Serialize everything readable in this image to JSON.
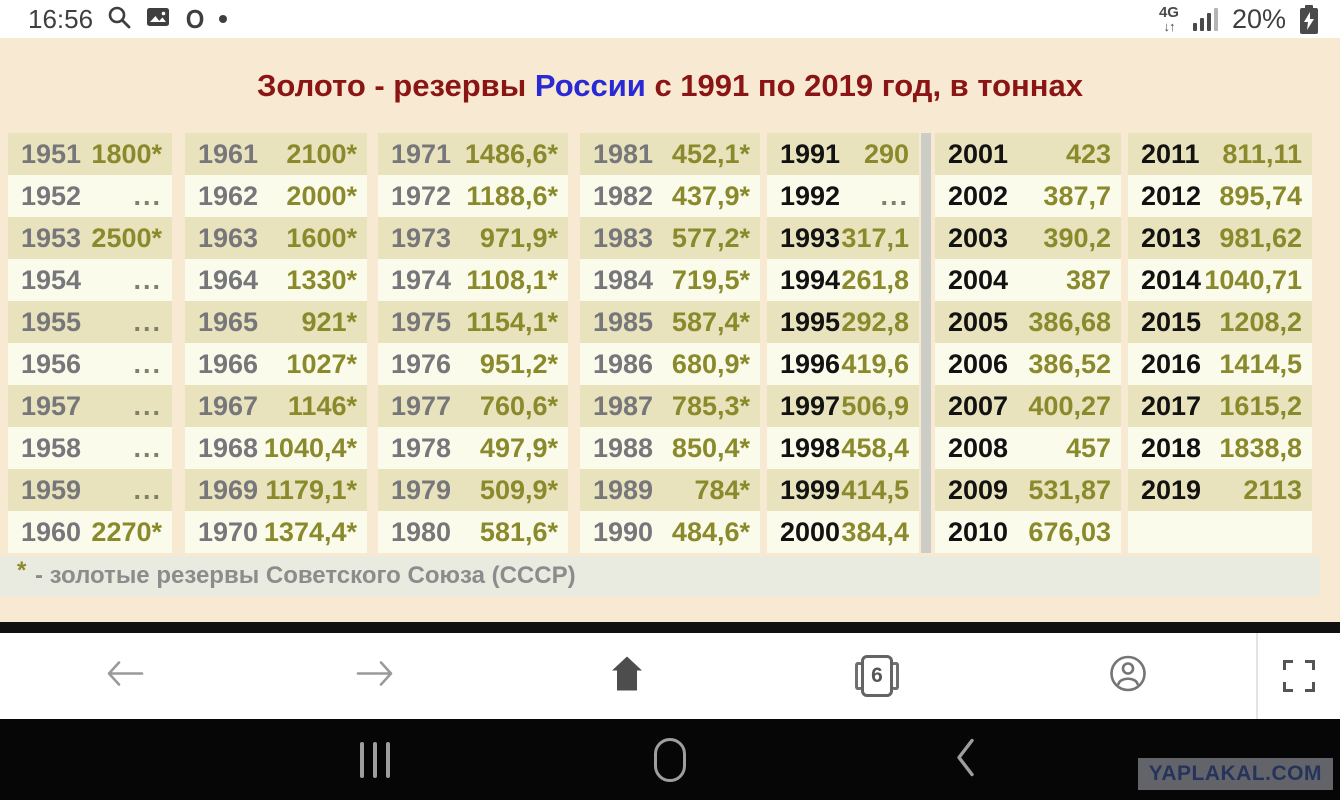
{
  "status_bar": {
    "time": "16:56",
    "network": "4G",
    "battery": "20%"
  },
  "icons": {
    "opera": "O",
    "data_arrows": "↓↑",
    "back_arrow": "back-arrow",
    "forward_arrow": "forward-arrow"
  },
  "title": {
    "prefix": "Золото - резервы ",
    "highlight": "России",
    "suffix": " с 1991 по 2019 год, в тоннах"
  },
  "table": {
    "columns": [
      {
        "year_style": "gray",
        "rows": [
          {
            "year": "1951",
            "value": "1800*"
          },
          {
            "year": "1952",
            "value": "..."
          },
          {
            "year": "1953",
            "value": "2500*"
          },
          {
            "year": "1954",
            "value": "..."
          },
          {
            "year": "1955",
            "value": "..."
          },
          {
            "year": "1956",
            "value": "..."
          },
          {
            "year": "1957",
            "value": "..."
          },
          {
            "year": "1958",
            "value": "..."
          },
          {
            "year": "1959",
            "value": "..."
          },
          {
            "year": "1960",
            "value": "2270*"
          }
        ]
      },
      {
        "year_style": "gray",
        "rows": [
          {
            "year": "1961",
            "value": "2100*"
          },
          {
            "year": "1962",
            "value": "2000*"
          },
          {
            "year": "1963",
            "value": "1600*"
          },
          {
            "year": "1964",
            "value": "1330*"
          },
          {
            "year": "1965",
            "value": "921*"
          },
          {
            "year": "1966",
            "value": "1027*"
          },
          {
            "year": "1967",
            "value": "1146*"
          },
          {
            "year": "1968",
            "value": "1040,4*"
          },
          {
            "year": "1969",
            "value": "1179,1*"
          },
          {
            "year": "1970",
            "value": "1374,4*"
          }
        ]
      },
      {
        "year_style": "gray",
        "rows": [
          {
            "year": "1971",
            "value": "1486,6*"
          },
          {
            "year": "1972",
            "value": "1188,6*"
          },
          {
            "year": "1973",
            "value": "971,9*"
          },
          {
            "year": "1974",
            "value": "1108,1*"
          },
          {
            "year": "1975",
            "value": "1154,1*"
          },
          {
            "year": "1976",
            "value": "951,2*"
          },
          {
            "year": "1977",
            "value": "760,6*"
          },
          {
            "year": "1978",
            "value": "497,9*"
          },
          {
            "year": "1979",
            "value": "509,9*"
          },
          {
            "year": "1980",
            "value": "581,6*"
          }
        ]
      },
      {
        "year_style": "gray",
        "rows": [
          {
            "year": "1981",
            "value": "452,1*"
          },
          {
            "year": "1982",
            "value": "437,9*"
          },
          {
            "year": "1983",
            "value": "577,2*"
          },
          {
            "year": "1984",
            "value": "719,5*"
          },
          {
            "year": "1985",
            "value": "587,4*"
          },
          {
            "year": "1986",
            "value": "680,9*"
          },
          {
            "year": "1987",
            "value": "785,3*"
          },
          {
            "year": "1988",
            "value": "850,4*"
          },
          {
            "year": "1989",
            "value": "784*"
          },
          {
            "year": "1990",
            "value": "484,6*"
          }
        ]
      },
      {
        "year_style": "dark",
        "rows": [
          {
            "year": "1991",
            "value": "290"
          },
          {
            "year": "1992",
            "value": "..."
          },
          {
            "year": "1993",
            "value": "317,1"
          },
          {
            "year": "1994",
            "value": "261,8"
          },
          {
            "year": "1995",
            "value": "292,8"
          },
          {
            "year": "1996",
            "value": "419,6"
          },
          {
            "year": "1997",
            "value": "506,9"
          },
          {
            "year": "1998",
            "value": "458,4"
          },
          {
            "year": "1999",
            "value": "414,5"
          },
          {
            "year": "2000",
            "value": "384,4"
          }
        ]
      },
      {
        "year_style": "dark",
        "rows": [
          {
            "year": "2001",
            "value": "423"
          },
          {
            "year": "2002",
            "value": "387,7"
          },
          {
            "year": "2003",
            "value": "390,2"
          },
          {
            "year": "2004",
            "value": "387"
          },
          {
            "year": "2005",
            "value": "386,68"
          },
          {
            "year": "2006",
            "value": "386,52"
          },
          {
            "year": "2007",
            "value": "400,27"
          },
          {
            "year": "2008",
            "value": "457"
          },
          {
            "year": "2009",
            "value": "531,87"
          },
          {
            "year": "2010",
            "value": "676,03"
          }
        ]
      },
      {
        "year_style": "dark",
        "rows": [
          {
            "year": "2011",
            "value": "811,11"
          },
          {
            "year": "2012",
            "value": "895,74"
          },
          {
            "year": "2013",
            "value": "981,62"
          },
          {
            "year": "2014",
            "value": "1040,71"
          },
          {
            "year": "2015",
            "value": "1208,2"
          },
          {
            "year": "2016",
            "value": "1414,5"
          },
          {
            "year": "2017",
            "value": "1615,2"
          },
          {
            "year": "2018",
            "value": "1838,8"
          },
          {
            "year": "2019",
            "value": "2113"
          },
          {
            "year": "",
            "value": ""
          }
        ]
      }
    ]
  },
  "footnote": {
    "marker": "*",
    "text": " - золотые резервы Советского Союза (СССР)"
  },
  "browser_nav": {
    "tab_count": "6"
  },
  "watermark": {
    "text": "YAPLAKAL.COM"
  },
  "colors": {
    "page_background": "#f7e9d2",
    "row_odd": "#e8e3bc",
    "row_even": "#fbfbec",
    "value_olive": "#8a8a2c",
    "year_gray": "#77777b",
    "year_dark": "#121212",
    "title_red": "#8b1414",
    "title_blue": "#2929d6",
    "footnote_bg": "#e9eae0"
  }
}
